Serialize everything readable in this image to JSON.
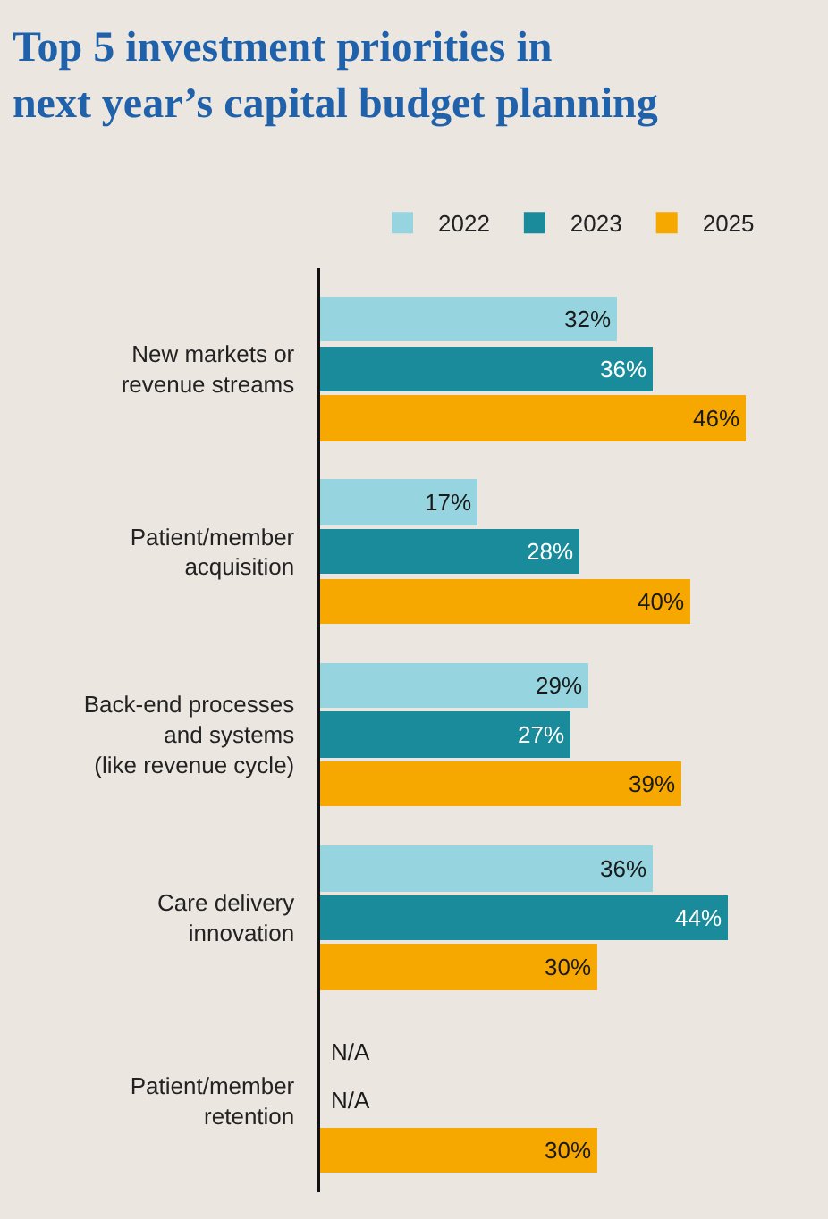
{
  "chart_data": {
    "type": "bar",
    "orientation": "horizontal",
    "title": "Top 5 investment priorities in\nnext year’s capital budget planning",
    "categories": [
      "New markets or\nrevenue streams",
      "Patient/member\nacquisition",
      "Back-end processes\nand systems\n(like revenue cycle)",
      "Care delivery\ninnovation",
      "Patient/member\nretention"
    ],
    "series": [
      {
        "name": "2022",
        "color": "#96d5df",
        "values": [
          32,
          17,
          29,
          36,
          null
        ],
        "value_labels": [
          "32%",
          "17%",
          "29%",
          "36%",
          "N/A"
        ]
      },
      {
        "name": "2023",
        "color": "#1a8b9b",
        "values": [
          36,
          28,
          27,
          44,
          null
        ],
        "value_labels": [
          "36%",
          "28%",
          "27%",
          "44%",
          "N/A"
        ]
      },
      {
        "name": "2025",
        "color": "#f7a800",
        "values": [
          46,
          40,
          39,
          30,
          30
        ],
        "value_labels": [
          "46%",
          "40%",
          "39%",
          "30%",
          "30%"
        ]
      }
    ],
    "legend": "top",
    "grid": false,
    "tick_labels": "y"
  }
}
